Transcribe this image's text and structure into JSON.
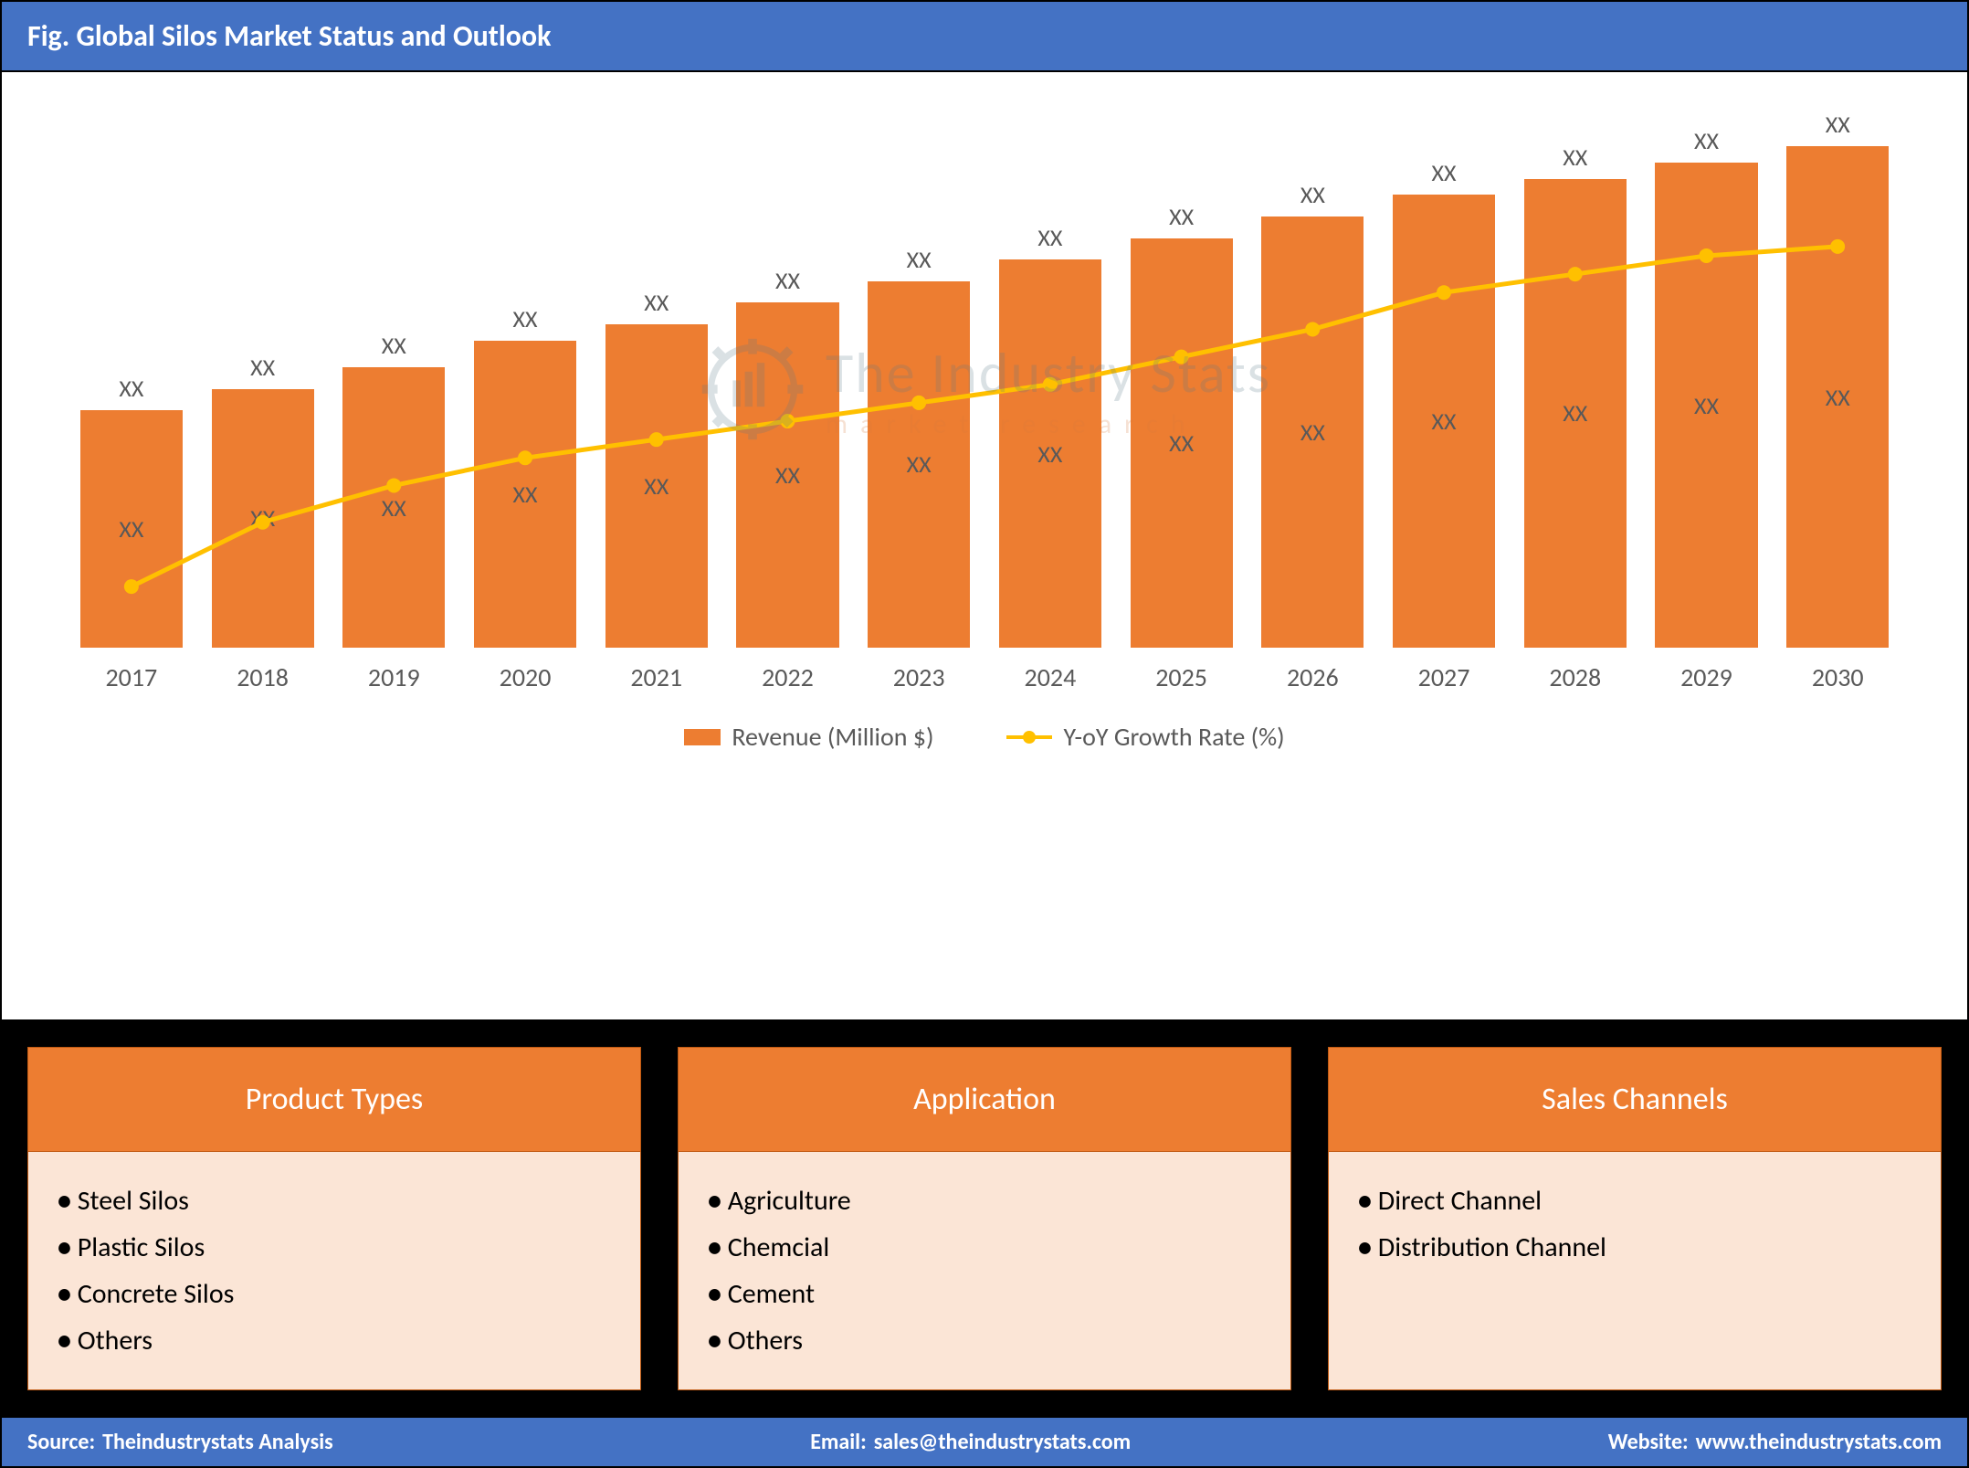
{
  "title": "Fig. Global Silos Market Status and Outlook",
  "chart": {
    "type": "bar+line",
    "years": [
      "2017",
      "2018",
      "2019",
      "2020",
      "2021",
      "2022",
      "2023",
      "2024",
      "2025",
      "2026",
      "2027",
      "2028",
      "2029",
      "2030"
    ],
    "bar_values": [
      44,
      48,
      52,
      57,
      60,
      64,
      68,
      72,
      76,
      80,
      84,
      87,
      90,
      93
    ],
    "bar_top_labels": [
      "XX",
      "XX",
      "XX",
      "XX",
      "XX",
      "XX",
      "XX",
      "XX",
      "XX",
      "XX",
      "XX",
      "XX",
      "XX",
      "XX"
    ],
    "bar_in_labels": [
      "XX",
      "XX",
      "XX",
      "XX",
      "XX",
      "XX",
      "XX",
      "XX",
      "XX",
      "XX",
      "XX",
      "XX",
      "XX",
      "XX"
    ],
    "line_values": [
      48,
      55,
      59,
      62,
      64,
      66,
      68,
      70,
      73,
      76,
      80,
      82,
      84,
      85
    ],
    "ylim": [
      0,
      100
    ],
    "bar_color": "#ed7d31",
    "line_color": "#ffc000",
    "marker_color": "#ffc000",
    "marker_size": 8,
    "line_width": 5,
    "x_label_color": "#595959",
    "x_label_fontsize": 28,
    "data_label_fontsize": 26,
    "background_color": "#ffffff"
  },
  "legend": {
    "bar_label": "Revenue (Million $)",
    "line_label": "Y-oY Growth Rate (%)"
  },
  "watermark": {
    "main": "The Industry Stats",
    "sub": "market research"
  },
  "cards": [
    {
      "title": "Product Types",
      "items": [
        "Steel Silos",
        "Plastic Silos",
        "Concrete Silos",
        "Others"
      ]
    },
    {
      "title": "Application",
      "items": [
        "Agriculture",
        "Chemcial",
        "Cement",
        "Others"
      ]
    },
    {
      "title": "Sales Channels",
      "items": [
        "Direct Channel",
        "Distribution Channel"
      ]
    }
  ],
  "footer": {
    "source_label": "Source:",
    "source_value": "Theindustrystats Analysis",
    "email_label": "Email:",
    "email_value": "sales@theindustrystats.com",
    "website_label": "Website:",
    "website_value": "www.theindustrystats.com"
  },
  "colors": {
    "title_bar": "#4472c4",
    "card_header": "#ed7d31",
    "card_body": "#fbe5d6",
    "card_border": "#c15a12",
    "cards_bg": "#000000",
    "footer_bar": "#4472c4"
  }
}
